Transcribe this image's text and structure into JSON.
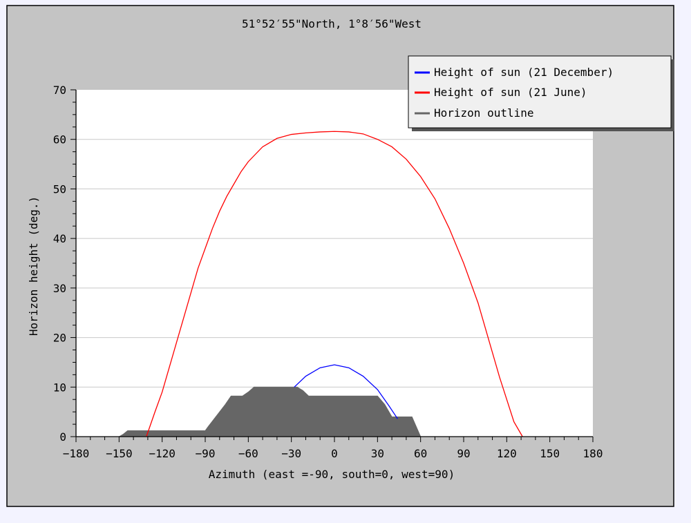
{
  "chart_data": {
    "type": "line",
    "title": "51°52′55\"North, 1°8′56\"West",
    "xlabel": "Azimuth (east =-90, south=0, west=90)",
    "ylabel": "Horizon height (deg.)",
    "xlim": [
      -180,
      180
    ],
    "ylim": [
      0,
      70
    ],
    "x_ticks": [
      -180,
      -150,
      -120,
      -90,
      -60,
      -30,
      0,
      30,
      60,
      90,
      120,
      150,
      180
    ],
    "y_ticks": [
      0,
      10,
      20,
      30,
      40,
      50,
      60,
      70
    ],
    "grid": "horizontal",
    "legend_position": "top-right",
    "series": [
      {
        "name": "Height of sun (21 December)",
        "color": "#0000ff",
        "points": [
          [
            -28,
            10
          ],
          [
            -20,
            12.2
          ],
          [
            -10,
            13.9
          ],
          [
            0,
            14.5
          ],
          [
            10,
            13.9
          ],
          [
            20,
            12.2
          ],
          [
            30,
            9.5
          ],
          [
            38,
            6.2
          ],
          [
            44,
            3.6
          ]
        ]
      },
      {
        "name": "Height of sun (21 June)",
        "color": "#ff0000",
        "points": [
          [
            -131,
            0
          ],
          [
            -125,
            5
          ],
          [
            -120,
            9
          ],
          [
            -115,
            14
          ],
          [
            -110,
            19
          ],
          [
            -105,
            24
          ],
          [
            -100,
            29
          ],
          [
            -95,
            34
          ],
          [
            -90,
            38
          ],
          [
            -85,
            42
          ],
          [
            -80,
            45.5
          ],
          [
            -75,
            48.5
          ],
          [
            -70,
            51
          ],
          [
            -65,
            53.5
          ],
          [
            -60,
            55.5
          ],
          [
            -50,
            58.5
          ],
          [
            -40,
            60.2
          ],
          [
            -30,
            61
          ],
          [
            -20,
            61.3
          ],
          [
            -10,
            61.5
          ],
          [
            0,
            61.6
          ],
          [
            10,
            61.5
          ],
          [
            20,
            61.1
          ],
          [
            30,
            60
          ],
          [
            40,
            58.5
          ],
          [
            50,
            56
          ],
          [
            60,
            52.5
          ],
          [
            70,
            48
          ],
          [
            80,
            42
          ],
          [
            90,
            35
          ],
          [
            100,
            27
          ],
          [
            105,
            22
          ],
          [
            110,
            17
          ],
          [
            115,
            12
          ],
          [
            120,
            7.5
          ],
          [
            125,
            3
          ],
          [
            131,
            0
          ]
        ]
      },
      {
        "name": "Horizon outline",
        "color": "#666666",
        "points": [
          [
            -150,
            0
          ],
          [
            -147,
            0.5
          ],
          [
            -144,
            1.2
          ],
          [
            -90,
            1.2
          ],
          [
            -88,
            2
          ],
          [
            -84,
            3.5
          ],
          [
            -80,
            5
          ],
          [
            -76,
            6.5
          ],
          [
            -72,
            8.2
          ],
          [
            -64,
            8.2
          ],
          [
            -60,
            9
          ],
          [
            -56,
            10
          ],
          [
            -26,
            10
          ],
          [
            -22,
            9.3
          ],
          [
            -18,
            8.2
          ],
          [
            20,
            8.2
          ],
          [
            30,
            8.2
          ],
          [
            35,
            6.5
          ],
          [
            40,
            4
          ],
          [
            54,
            4
          ],
          [
            57,
            2
          ],
          [
            60,
            0
          ]
        ]
      }
    ]
  }
}
